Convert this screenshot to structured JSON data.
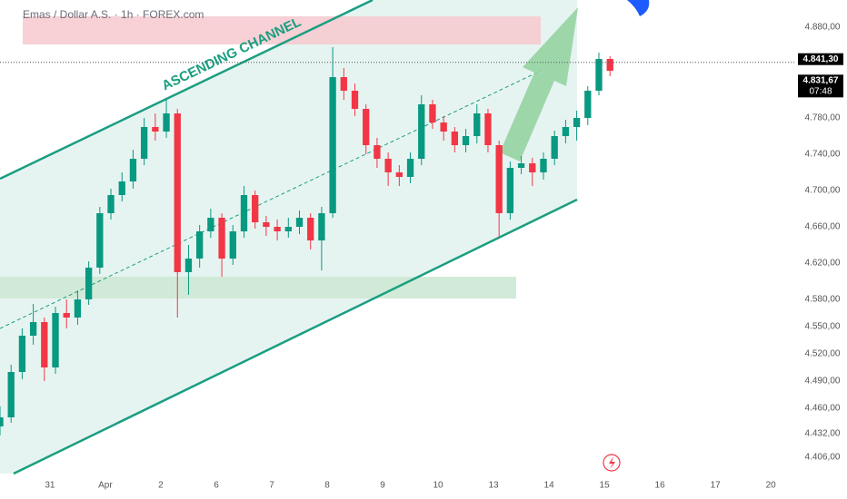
{
  "chart_data": {
    "type": "candlestick",
    "title": "Emas / Dollar A.S. · 1h · FOREX.com",
    "annotation": "ASCENDING CHANNEL",
    "up_color": "#089981",
    "down_color": "#f23645",
    "x": [
      -0.9,
      -0.7,
      -0.5,
      -0.3,
      -0.1,
      0.1,
      0.3,
      0.5,
      0.7,
      0.9,
      1.1,
      1.3,
      1.5,
      1.7,
      1.9,
      2.1,
      2.3,
      2.5,
      2.7,
      2.9,
      3.1,
      3.3,
      3.5,
      3.7,
      3.9,
      4.1,
      4.3,
      4.5,
      4.7,
      4.9,
      5.1,
      5.3,
      5.5,
      5.7,
      5.9,
      6.1,
      6.3,
      6.5,
      6.7,
      6.9,
      7.1,
      7.3,
      7.5,
      7.7,
      7.9,
      8.1,
      8.3,
      8.5,
      8.7,
      8.9,
      9.1,
      9.3,
      9.5,
      9.7,
      9.9,
      10.1
    ],
    "open": [
      4440,
      4450,
      4500,
      4540,
      4555,
      4505,
      4565,
      4560,
      4580,
      4615,
      4675,
      4695,
      4710,
      4735,
      4770,
      4765,
      4785,
      4610,
      4625,
      4655,
      4670,
      4625,
      4655,
      4695,
      4665,
      4660,
      4655,
      4660,
      4670,
      4645,
      4675,
      4825,
      4810,
      4790,
      4750,
      4735,
      4720,
      4715,
      4735,
      4795,
      4775,
      4765,
      4750,
      4760,
      4785,
      4750,
      4675,
      4725,
      4730,
      4720,
      4735,
      4760,
      4770,
      4780,
      4810,
      4845
    ],
    "high": [
      4462,
      4508,
      4548,
      4575,
      4560,
      4572,
      4580,
      4590,
      4622,
      4682,
      4702,
      4720,
      4745,
      4780,
      4785,
      4800,
      4790,
      4640,
      4662,
      4680,
      4675,
      4662,
      4705,
      4700,
      4672,
      4668,
      4670,
      4678,
      4675,
      4682,
      4858,
      4835,
      4818,
      4795,
      4758,
      4742,
      4728,
      4742,
      4805,
      4800,
      4782,
      4770,
      4768,
      4795,
      4790,
      4755,
      4732,
      4738,
      4736,
      4742,
      4766,
      4778,
      4788,
      4815,
      4852,
      4848
    ],
    "low": [
      4430,
      4444,
      4492,
      4530,
      4490,
      4498,
      4548,
      4552,
      4574,
      4608,
      4668,
      4688,
      4702,
      4728,
      4755,
      4758,
      4560,
      4585,
      4615,
      4648,
      4605,
      4618,
      4648,
      4658,
      4650,
      4645,
      4648,
      4652,
      4635,
      4612,
      4670,
      4800,
      4782,
      4740,
      4725,
      4705,
      4705,
      4708,
      4728,
      4768,
      4755,
      4742,
      4742,
      4752,
      4742,
      4648,
      4668,
      4718,
      4705,
      4712,
      4728,
      4752,
      4755,
      4772,
      4805,
      4826
    ],
    "close": [
      4450,
      4500,
      4540,
      4555,
      4505,
      4565,
      4560,
      4580,
      4615,
      4675,
      4695,
      4710,
      4735,
      4770,
      4765,
      4785,
      4610,
      4625,
      4655,
      4670,
      4625,
      4655,
      4695,
      4665,
      4660,
      4655,
      4660,
      4670,
      4645,
      4675,
      4825,
      4810,
      4790,
      4750,
      4735,
      4720,
      4715,
      4735,
      4795,
      4775,
      4765,
      4750,
      4760,
      4785,
      4750,
      4675,
      4725,
      4730,
      4720,
      4735,
      4760,
      4770,
      4780,
      4810,
      4845,
      4832
    ],
    "xlim": [
      -0.9,
      13.44
    ],
    "xticks": [
      {
        "value": 0,
        "label": "31"
      },
      {
        "value": 1,
        "label": "Apr"
      },
      {
        "value": 2,
        "label": "2"
      },
      {
        "value": 3,
        "label": "6"
      },
      {
        "value": 4,
        "label": "7"
      },
      {
        "value": 5,
        "label": "8"
      },
      {
        "value": 6,
        "label": "9"
      },
      {
        "value": 7,
        "label": "10"
      },
      {
        "value": 8,
        "label": "13"
      },
      {
        "value": 9,
        "label": "14"
      },
      {
        "value": 10,
        "label": "15"
      },
      {
        "value": 11,
        "label": "16"
      },
      {
        "value": 12,
        "label": "17"
      },
      {
        "value": 13,
        "label": "20"
      }
    ],
    "ylim": [
      4388,
      4910
    ],
    "yticks": [
      {
        "value": 4880,
        "label": "4.880,00"
      },
      {
        "value": 4780,
        "label": "4.780,00"
      },
      {
        "value": 4740,
        "label": "4.740,00"
      },
      {
        "value": 4700,
        "label": "4.700,00"
      },
      {
        "value": 4660,
        "label": "4.660,00"
      },
      {
        "value": 4620,
        "label": "4.620,00"
      },
      {
        "value": 4580,
        "label": "4.580,00"
      },
      {
        "value": 4550,
        "label": "4.550,00"
      },
      {
        "value": 4520,
        "label": "4.520,00"
      },
      {
        "value": 4490,
        "label": "4.490,00"
      },
      {
        "value": 4460,
        "label": "4.460,00"
      },
      {
        "value": 4432,
        "label": "4.432,00"
      },
      {
        "value": 4406,
        "label": "4.406,00"
      }
    ],
    "price_line": {
      "value": 4841.3,
      "label": "4.841,30"
    },
    "last_price": {
      "value": 4831.67,
      "label": "4.831,67"
    },
    "countdown": "07:48"
  }
}
